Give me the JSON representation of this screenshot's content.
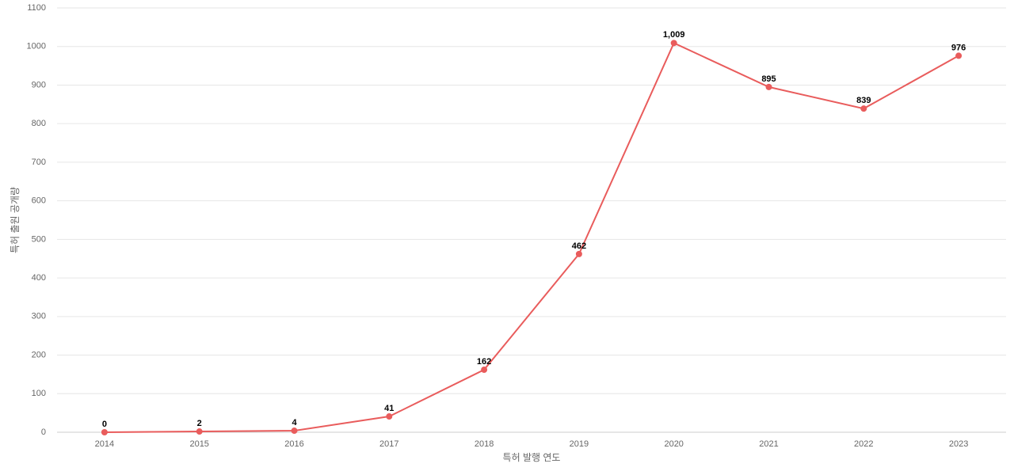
{
  "chart_data": {
    "type": "line",
    "x_label": "특허 발행 연도",
    "y_label": "특허 출원 공개량",
    "categories": [
      "2014",
      "2015",
      "2016",
      "2017",
      "2018",
      "2019",
      "2020",
      "2021",
      "2022",
      "2023"
    ],
    "values": [
      0,
      2,
      4,
      41,
      162,
      462,
      1009,
      895,
      839,
      976
    ],
    "value_labels": [
      "0",
      "2",
      "4",
      "41",
      "162",
      "462",
      "1,009",
      "895",
      "839",
      "976"
    ],
    "color": "#e95c5c",
    "ylim": [
      0,
      1100
    ],
    "yticks": [
      0,
      100,
      200,
      300,
      400,
      500,
      600,
      700,
      800,
      900,
      1000,
      1100
    ],
    "grid": true
  }
}
